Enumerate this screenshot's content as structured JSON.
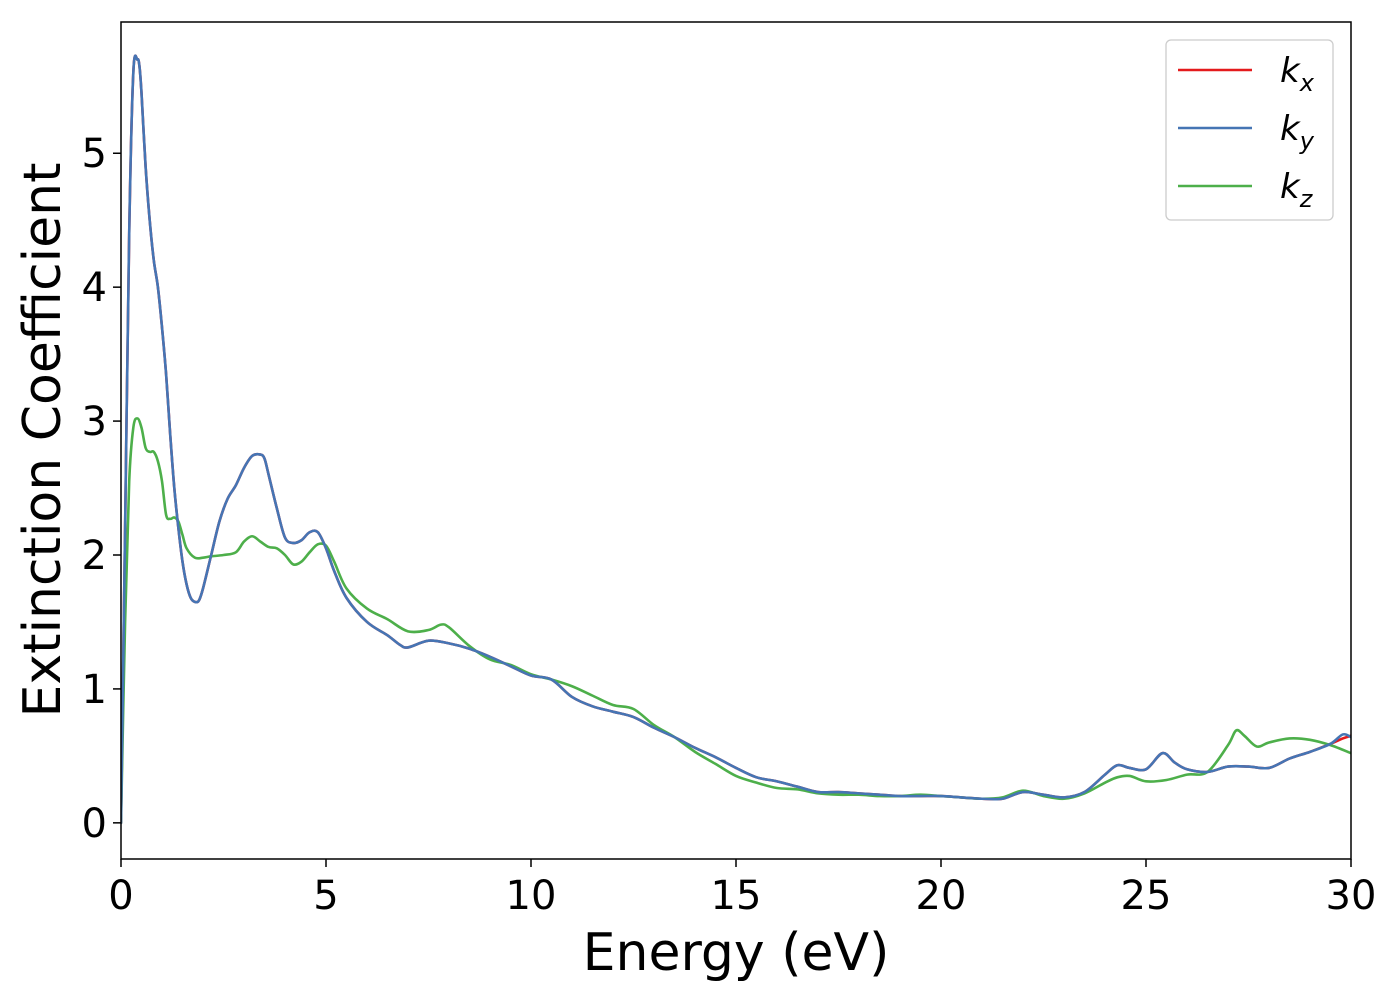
{
  "chart_data": {
    "type": "line",
    "xlabel": "Energy (eV)",
    "ylabel": "Extinction Coefficient",
    "xlim": [
      0,
      30
    ],
    "ylim": [
      -0.27,
      5.98
    ],
    "xticks": [
      "0",
      "5",
      "10",
      "15",
      "20",
      "25",
      "30"
    ],
    "yticks": [
      "0",
      "1",
      "2",
      "3",
      "4",
      "5"
    ],
    "grid": false,
    "legend_position": "top-right",
    "series": [
      {
        "name": "k_x",
        "legend_base": "k",
        "legend_sub": "x",
        "color": "#e41a1c",
        "x": [
          0,
          0.1,
          0.2,
          0.3,
          0.4,
          0.45,
          0.5,
          0.6,
          0.7,
          0.8,
          0.9,
          1.0,
          1.1,
          1.2,
          1.3,
          1.4,
          1.5,
          1.6,
          1.7,
          1.8,
          1.9,
          2.0,
          2.2,
          2.4,
          2.6,
          2.8,
          3.0,
          3.2,
          3.4,
          3.5,
          3.6,
          3.8,
          4.0,
          4.2,
          4.4,
          4.6,
          4.8,
          5.0,
          5.2,
          5.5,
          6.0,
          6.5,
          6.8,
          7.0,
          7.5,
          8.0,
          8.5,
          9.0,
          9.5,
          10.0,
          10.5,
          11.0,
          11.5,
          12.0,
          12.5,
          13.0,
          13.5,
          14.0,
          14.5,
          15.0,
          15.5,
          16.0,
          16.5,
          17.0,
          17.5,
          18.0,
          18.5,
          19.0,
          19.5,
          20.0,
          20.5,
          21.0,
          21.5,
          22.0,
          22.5,
          23.0,
          23.5,
          24.0,
          24.3,
          24.6,
          25.0,
          25.4,
          25.7,
          26.0,
          26.5,
          27.0,
          27.5,
          28.0,
          28.5,
          29.0,
          29.5,
          29.8,
          30.0
        ],
        "y": [
          0.0,
          2.2,
          4.4,
          5.6,
          5.7,
          5.65,
          5.45,
          4.9,
          4.5,
          4.2,
          4.0,
          3.7,
          3.35,
          2.9,
          2.5,
          2.2,
          1.95,
          1.78,
          1.68,
          1.65,
          1.66,
          1.75,
          2.0,
          2.25,
          2.42,
          2.52,
          2.65,
          2.74,
          2.75,
          2.72,
          2.6,
          2.35,
          2.13,
          2.09,
          2.11,
          2.17,
          2.17,
          2.05,
          1.88,
          1.68,
          1.5,
          1.4,
          1.33,
          1.31,
          1.36,
          1.34,
          1.3,
          1.24,
          1.17,
          1.1,
          1.07,
          0.94,
          0.87,
          0.83,
          0.79,
          0.71,
          0.64,
          0.56,
          0.49,
          0.41,
          0.34,
          0.31,
          0.27,
          0.23,
          0.23,
          0.22,
          0.21,
          0.2,
          0.2,
          0.2,
          0.19,
          0.18,
          0.18,
          0.23,
          0.21,
          0.19,
          0.23,
          0.36,
          0.43,
          0.41,
          0.4,
          0.52,
          0.45,
          0.4,
          0.38,
          0.42,
          0.42,
          0.41,
          0.48,
          0.53,
          0.59,
          0.63,
          0.65
        ]
      },
      {
        "name": "k_y",
        "legend_base": "k",
        "legend_sub": "y",
        "color": "#4575b4",
        "x": [
          0,
          0.1,
          0.2,
          0.3,
          0.4,
          0.45,
          0.5,
          0.6,
          0.7,
          0.8,
          0.9,
          1.0,
          1.1,
          1.2,
          1.3,
          1.4,
          1.5,
          1.6,
          1.7,
          1.8,
          1.9,
          2.0,
          2.2,
          2.4,
          2.6,
          2.8,
          3.0,
          3.2,
          3.4,
          3.5,
          3.6,
          3.8,
          4.0,
          4.2,
          4.4,
          4.6,
          4.8,
          5.0,
          5.2,
          5.5,
          6.0,
          6.5,
          6.8,
          7.0,
          7.5,
          8.0,
          8.5,
          9.0,
          9.5,
          10.0,
          10.5,
          11.0,
          11.5,
          12.0,
          12.5,
          13.0,
          13.5,
          14.0,
          14.5,
          15.0,
          15.5,
          16.0,
          16.5,
          17.0,
          17.5,
          18.0,
          18.5,
          19.0,
          19.5,
          20.0,
          20.5,
          21.0,
          21.5,
          22.0,
          22.5,
          23.0,
          23.5,
          24.0,
          24.3,
          24.6,
          25.0,
          25.4,
          25.7,
          26.0,
          26.5,
          27.0,
          27.5,
          28.0,
          28.5,
          29.0,
          29.5,
          29.8,
          30.0
        ],
        "y": [
          0.0,
          2.2,
          4.4,
          5.6,
          5.7,
          5.65,
          5.45,
          4.9,
          4.5,
          4.2,
          4.0,
          3.7,
          3.35,
          2.9,
          2.5,
          2.2,
          1.95,
          1.78,
          1.68,
          1.65,
          1.66,
          1.75,
          2.0,
          2.25,
          2.42,
          2.52,
          2.65,
          2.74,
          2.75,
          2.72,
          2.6,
          2.35,
          2.13,
          2.09,
          2.11,
          2.17,
          2.17,
          2.05,
          1.88,
          1.68,
          1.5,
          1.4,
          1.33,
          1.31,
          1.36,
          1.34,
          1.3,
          1.24,
          1.17,
          1.1,
          1.07,
          0.94,
          0.87,
          0.83,
          0.79,
          0.71,
          0.64,
          0.56,
          0.49,
          0.41,
          0.34,
          0.31,
          0.27,
          0.23,
          0.23,
          0.22,
          0.21,
          0.2,
          0.2,
          0.2,
          0.19,
          0.18,
          0.18,
          0.23,
          0.21,
          0.19,
          0.23,
          0.36,
          0.43,
          0.41,
          0.4,
          0.52,
          0.45,
          0.4,
          0.38,
          0.42,
          0.42,
          0.41,
          0.48,
          0.53,
          0.59,
          0.66,
          0.64
        ]
      },
      {
        "name": "k_z",
        "legend_base": "k",
        "legend_sub": "z",
        "color": "#4daf4a",
        "x": [
          0,
          0.1,
          0.2,
          0.3,
          0.4,
          0.5,
          0.6,
          0.7,
          0.8,
          0.9,
          1.0,
          1.1,
          1.2,
          1.3,
          1.4,
          1.5,
          1.6,
          1.8,
          2.0,
          2.2,
          2.5,
          2.8,
          3.0,
          3.2,
          3.4,
          3.6,
          3.8,
          4.0,
          4.2,
          4.4,
          4.6,
          4.8,
          5.0,
          5.2,
          5.5,
          6.0,
          6.5,
          7.0,
          7.5,
          7.8,
          8.0,
          8.5,
          9.0,
          9.5,
          10.0,
          10.5,
          11.0,
          11.5,
          12.0,
          12.5,
          13.0,
          13.5,
          14.0,
          14.5,
          15.0,
          15.5,
          16.0,
          16.5,
          17.0,
          17.5,
          18.0,
          18.5,
          19.0,
          19.5,
          20.0,
          20.5,
          21.0,
          21.5,
          22.0,
          22.5,
          23.0,
          23.5,
          24.0,
          24.3,
          24.6,
          25.0,
          25.5,
          26.0,
          26.5,
          27.0,
          27.2,
          27.4,
          27.7,
          28.0,
          28.5,
          29.0,
          29.5,
          30.0
        ],
        "y": [
          0.0,
          1.5,
          2.55,
          2.95,
          3.02,
          2.95,
          2.8,
          2.77,
          2.77,
          2.7,
          2.55,
          2.3,
          2.27,
          2.28,
          2.25,
          2.15,
          2.05,
          1.98,
          1.98,
          1.99,
          2.0,
          2.02,
          2.1,
          2.14,
          2.1,
          2.06,
          2.05,
          2.0,
          1.93,
          1.95,
          2.02,
          2.08,
          2.07,
          1.95,
          1.75,
          1.6,
          1.52,
          1.43,
          1.44,
          1.48,
          1.46,
          1.32,
          1.22,
          1.18,
          1.11,
          1.07,
          1.02,
          0.95,
          0.88,
          0.85,
          0.73,
          0.64,
          0.53,
          0.44,
          0.35,
          0.3,
          0.26,
          0.25,
          0.22,
          0.21,
          0.21,
          0.2,
          0.2,
          0.21,
          0.2,
          0.19,
          0.18,
          0.19,
          0.24,
          0.2,
          0.18,
          0.22,
          0.3,
          0.34,
          0.35,
          0.31,
          0.32,
          0.36,
          0.38,
          0.58,
          0.69,
          0.65,
          0.57,
          0.6,
          0.63,
          0.62,
          0.58,
          0.52
        ]
      }
    ]
  }
}
